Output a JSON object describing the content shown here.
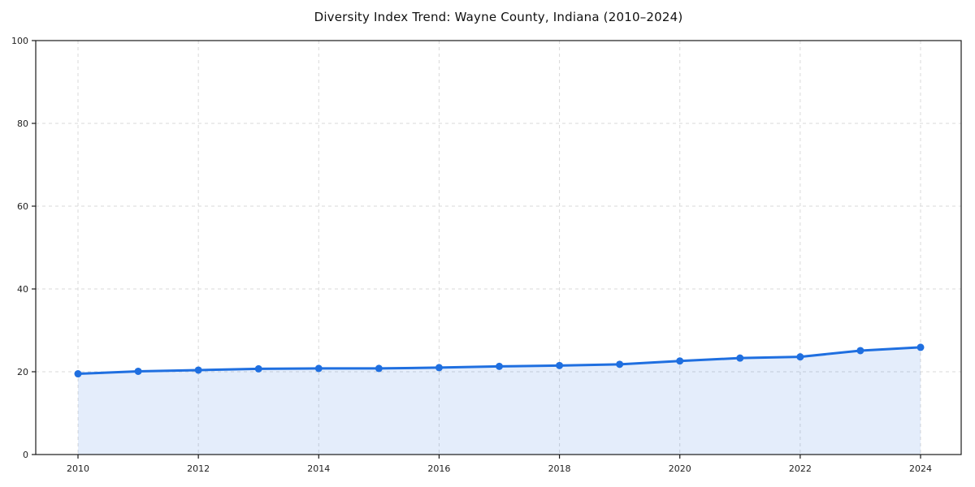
{
  "title": "Diversity Index Trend: Wayne County, Indiana (2010–2024)",
  "chart_data": {
    "type": "line",
    "title": "Diversity Index Trend: Wayne County, Indiana (2010–2024)",
    "x": [
      2010,
      2011,
      2012,
      2013,
      2014,
      2015,
      2016,
      2017,
      2018,
      2019,
      2020,
      2021,
      2022,
      2023,
      2024
    ],
    "series": [
      {
        "name": "Diversity Index",
        "values": [
          19.5,
          20.1,
          20.4,
          20.7,
          20.8,
          20.8,
          21.0,
          21.3,
          21.5,
          21.8,
          22.6,
          23.3,
          23.6,
          25.1,
          25.9
        ]
      }
    ],
    "xlabel": "",
    "ylabel": "",
    "ylim": [
      0,
      100
    ],
    "yticks": [
      0,
      20,
      40,
      60,
      80,
      100
    ],
    "xticks": [
      2010,
      2012,
      2014,
      2016,
      2018,
      2020,
      2022,
      2024
    ],
    "grid": true,
    "grid_style": "dashed",
    "legend": false,
    "area_fill": true,
    "marker": "circle",
    "colors": {
      "line": "#1f6fe0",
      "marker": "#1f6fe0",
      "fill": "#1f6fe0",
      "fill_opacity": 0.12,
      "grid": "#d9d9d9",
      "spine": "#1a1a1a",
      "tick_text": "#222222",
      "title_text": "#111111",
      "background": "#ffffff"
    }
  }
}
